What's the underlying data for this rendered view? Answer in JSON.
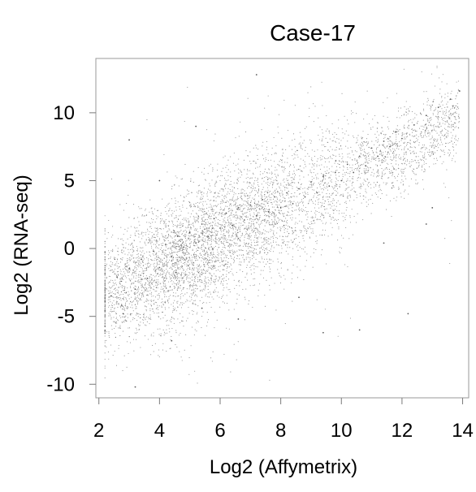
{
  "chart_data": {
    "type": "scatter",
    "title": "Case-17",
    "xlabel": "Log2 (Affymetrix)",
    "ylabel": "Log2 (RNA-seq)",
    "xlim": [
      1.9,
      14.2
    ],
    "ylim": [
      -11,
      14
    ],
    "x_ticks": [
      2,
      4,
      6,
      8,
      10,
      12,
      14
    ],
    "x_tick_labels": [
      "2",
      "4",
      "6",
      "8",
      "10",
      "12",
      "14"
    ],
    "y_ticks": [
      10,
      5,
      0,
      -5,
      -10
    ],
    "y_tick_labels": [
      "10",
      "5",
      "0",
      "-5",
      "-10"
    ],
    "grid": false,
    "point_color": "#333333",
    "frame_color": "#9a9a9a",
    "cloud_trend": {
      "slope": 1.1,
      "intercept": -5.8
    },
    "points": [
      [
        2.4,
        -3.5
      ],
      [
        2.6,
        -2.1
      ],
      [
        2.8,
        -4.8
      ],
      [
        3.0,
        -1.5
      ],
      [
        3.2,
        -3.0
      ],
      [
        3.4,
        -0.8
      ],
      [
        3.6,
        -2.2
      ],
      [
        3.8,
        -0.2
      ],
      [
        4.0,
        -1.4
      ],
      [
        4.2,
        0.3
      ],
      [
        4.4,
        -0.6
      ],
      [
        4.6,
        0.9
      ],
      [
        4.8,
        0.1
      ],
      [
        5.0,
        1.2
      ],
      [
        5.2,
        0.4
      ],
      [
        5.4,
        1.8
      ],
      [
        5.6,
        0.9
      ],
      [
        5.8,
        2.2
      ],
      [
        6.0,
        1.5
      ],
      [
        6.2,
        2.6
      ],
      [
        6.4,
        1.7
      ],
      [
        6.6,
        3.0
      ],
      [
        6.8,
        2.1
      ],
      [
        7.0,
        3.2
      ],
      [
        7.2,
        2.4
      ],
      [
        7.4,
        3.6
      ],
      [
        7.6,
        2.7
      ],
      [
        7.8,
        3.8
      ],
      [
        8.0,
        3.0
      ],
      [
        8.2,
        4.1
      ],
      [
        8.4,
        3.3
      ],
      [
        8.6,
        4.4
      ],
      [
        8.8,
        3.8
      ],
      [
        9.0,
        4.9
      ],
      [
        9.2,
        4.1
      ],
      [
        9.4,
        5.3
      ],
      [
        9.6,
        4.6
      ],
      [
        9.8,
        5.6
      ],
      [
        10.0,
        5.0
      ],
      [
        10.2,
        6.2
      ],
      [
        10.4,
        5.6
      ],
      [
        10.6,
        6.8
      ],
      [
        10.8,
        6.1
      ],
      [
        11.0,
        7.4
      ],
      [
        11.2,
        6.8
      ],
      [
        11.4,
        7.9
      ],
      [
        11.6,
        7.5
      ],
      [
        11.8,
        8.6
      ],
      [
        12.0,
        8.1
      ],
      [
        12.4,
        9.1
      ],
      [
        12.8,
        9.8
      ],
      [
        13.2,
        10.4
      ],
      [
        13.6,
        11.0
      ],
      [
        13.9,
        11.6
      ],
      [
        3.0,
        8.0
      ],
      [
        3.2,
        -10.2
      ],
      [
        4.0,
        5.0
      ],
      [
        5.2,
        9.0
      ],
      [
        7.2,
        12.8
      ],
      [
        6.6,
        -5.2
      ],
      [
        9.4,
        -6.2
      ],
      [
        10.6,
        -6.0
      ],
      [
        12.2,
        -4.8
      ],
      [
        13.0,
        3.0
      ],
      [
        8.6,
        -3.6
      ],
      [
        5.4,
        -4.4
      ],
      [
        4.4,
        -6.8
      ],
      [
        11.4,
        0.4
      ],
      [
        12.8,
        1.8
      ]
    ]
  }
}
